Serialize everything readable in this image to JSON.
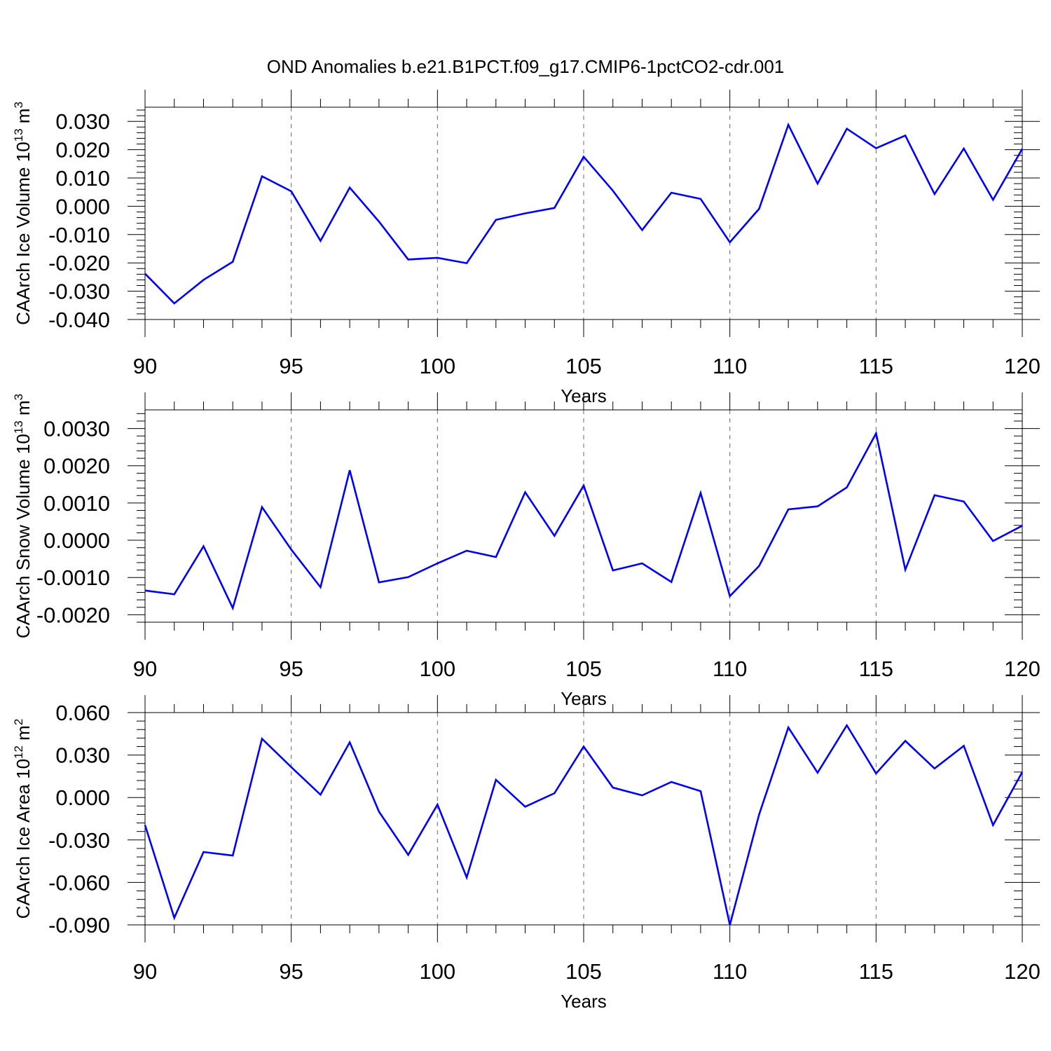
{
  "figure": {
    "title": "OND Anomalies b.e21.B1PCT.f09_g17.CMIP6-1pctCO2-cdr.001"
  },
  "chart_data": [
    {
      "type": "line",
      "title": "OND Anomalies b.e21.B1PCT.f09_g17.CMIP6-1pctCO2-cdr.001",
      "xlabel": "Years",
      "ylabel": "CAArch Ice Volume 10",
      "ylabel_exp": "13",
      "ylabel_unit": " m",
      "ylabel_unit_exp": "3",
      "xlim": [
        90,
        120
      ],
      "ylim": [
        -0.04,
        0.035
      ],
      "x_ticks": [
        90,
        95,
        100,
        105,
        110,
        115,
        120
      ],
      "x_tick_labels": [
        "90",
        "95",
        "100",
        "105",
        "110",
        "115",
        "120"
      ],
      "y_ticks": [
        -0.04,
        -0.03,
        -0.02,
        -0.01,
        0.0,
        0.01,
        0.02,
        0.03
      ],
      "y_tick_labels": [
        "-0.040",
        "-0.030",
        "-0.020",
        "-0.010",
        "0.000",
        "0.010",
        "0.020",
        "0.030"
      ],
      "grid_x": [
        95,
        100,
        105,
        110,
        115
      ],
      "series": [
        {
          "name": "CAArch Ice Volume",
          "color": "#0000ff",
          "x": [
            90,
            91,
            92,
            93,
            94,
            95,
            96,
            97,
            98,
            99,
            100,
            101,
            102,
            103,
            104,
            105,
            106,
            107,
            108,
            109,
            110,
            111,
            112,
            113,
            114,
            115,
            116,
            117,
            118,
            119,
            120
          ],
          "values": [
            -0.0238,
            -0.0343,
            -0.026,
            -0.0196,
            0.0106,
            0.0053,
            -0.0122,
            0.0066,
            -0.0054,
            -0.0188,
            -0.0182,
            -0.0201,
            -0.0048,
            -0.0025,
            -0.0006,
            0.0175,
            0.0055,
            -0.0084,
            0.0048,
            0.0026,
            -0.0127,
            -0.0009,
            0.0288,
            0.008,
            0.0274,
            0.0205,
            0.025,
            0.0043,
            0.0204,
            0.0023,
            0.0203
          ]
        }
      ]
    },
    {
      "type": "line",
      "xlabel": "Years",
      "ylabel": "CAArch Snow Volume 10",
      "ylabel_exp": "13",
      "ylabel_unit": " m",
      "ylabel_unit_exp": "3",
      "xlim": [
        90,
        120
      ],
      "ylim": [
        -0.0022,
        0.0035
      ],
      "x_ticks": [
        90,
        95,
        100,
        105,
        110,
        115,
        120
      ],
      "x_tick_labels": [
        "90",
        "95",
        "100",
        "105",
        "110",
        "115",
        "120"
      ],
      "y_ticks": [
        -0.002,
        -0.001,
        0.0,
        0.001,
        0.002,
        0.003
      ],
      "y_tick_labels": [
        "-0.0020",
        "-0.0010",
        "0.0000",
        "0.0010",
        "0.0020",
        "0.0030"
      ],
      "grid_x": [
        95,
        100,
        105,
        110,
        115
      ],
      "series": [
        {
          "name": "CAArch Snow Volume",
          "color": "#0000ff",
          "x": [
            90,
            91,
            92,
            93,
            94,
            95,
            96,
            97,
            98,
            99,
            100,
            101,
            102,
            103,
            104,
            105,
            106,
            107,
            108,
            109,
            110,
            111,
            112,
            113,
            114,
            115,
            116,
            117,
            118,
            119,
            120
          ],
          "values": [
            -0.00135,
            -0.00145,
            -0.00016,
            -0.00182,
            0.00089,
            -0.00025,
            -0.00126,
            0.00188,
            -0.00113,
            -0.00099,
            -0.00062,
            -0.00028,
            -0.00045,
            0.00129,
            0.00012,
            0.00147,
            -0.00081,
            -0.00062,
            -0.00112,
            0.00127,
            -0.0015,
            -0.00069,
            0.00083,
            0.00091,
            0.00142,
            0.00287,
            -0.00079,
            0.00121,
            0.00104,
            -2e-05,
            0.00039
          ]
        }
      ]
    },
    {
      "type": "line",
      "xlabel": "Years",
      "ylabel": "CAArch Ice Area 10",
      "ylabel_exp": "12",
      "ylabel_unit": " m",
      "ylabel_unit_exp": "2",
      "xlim": [
        90,
        120
      ],
      "ylim": [
        -0.09,
        0.06
      ],
      "x_ticks": [
        90,
        95,
        100,
        105,
        110,
        115,
        120
      ],
      "x_tick_labels": [
        "90",
        "95",
        "100",
        "105",
        "110",
        "115",
        "120"
      ],
      "y_ticks": [
        -0.09,
        -0.06,
        -0.03,
        0.0,
        0.03,
        0.06
      ],
      "y_tick_labels": [
        "-0.090",
        "-0.060",
        "-0.030",
        "0.000",
        "0.030",
        "0.060"
      ],
      "grid_x": [
        95,
        100,
        105,
        110,
        115
      ],
      "series": [
        {
          "name": "CAArch Ice Area",
          "color": "#0000ff",
          "x": [
            90,
            91,
            92,
            93,
            94,
            95,
            96,
            97,
            98,
            99,
            100,
            101,
            102,
            103,
            104,
            105,
            106,
            107,
            108,
            109,
            110,
            111,
            112,
            113,
            114,
            115,
            116,
            117,
            118,
            119,
            120
          ],
          "values": [
            -0.0195,
            -0.085,
            -0.0385,
            -0.041,
            0.0415,
            0.0215,
            0.002,
            0.039,
            -0.01,
            -0.0405,
            -0.005,
            -0.0565,
            0.0125,
            -0.0065,
            0.003,
            0.036,
            0.007,
            0.0015,
            0.011,
            0.0045,
            -0.09,
            -0.012,
            0.0495,
            0.0175,
            0.051,
            0.017,
            0.04,
            0.0205,
            0.0365,
            -0.0195,
            0.018
          ]
        }
      ]
    }
  ]
}
